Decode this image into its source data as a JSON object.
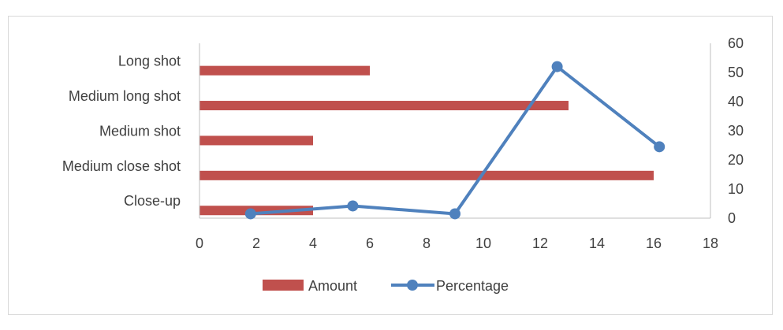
{
  "chart_data": {
    "type": "bar+line",
    "categories": [
      "Close-up",
      "Medium close shot",
      "Medium shot",
      "Medium long shot",
      "Long shot"
    ],
    "series": [
      {
        "name": "Amount",
        "type": "bar",
        "orientation": "horizontal",
        "axis": "bottom",
        "values": [
          4,
          16,
          4,
          13,
          6
        ],
        "color": "#c0504d"
      },
      {
        "name": "Percentage",
        "type": "line",
        "marker": "circle",
        "axis": "right",
        "points": [
          [
            1.8,
            1.5
          ],
          [
            5.4,
            4.2
          ],
          [
            9,
            1.5
          ],
          [
            12.6,
            52
          ],
          [
            16.2,
            24.5
          ]
        ],
        "color": "#4f81bd"
      }
    ],
    "x_axis": {
      "min": 0,
      "max": 18,
      "ticks": [
        "0",
        "2",
        "4",
        "6",
        "8",
        "10",
        "12",
        "14",
        "16",
        "18"
      ]
    },
    "y2_axis": {
      "min": 0,
      "max": 60,
      "ticks": [
        "0",
        "10",
        "20",
        "30",
        "40",
        "50",
        "60"
      ]
    },
    "legend": {
      "position": "bottom",
      "entries": [
        "Amount",
        "Percentage"
      ]
    },
    "grid": false
  }
}
